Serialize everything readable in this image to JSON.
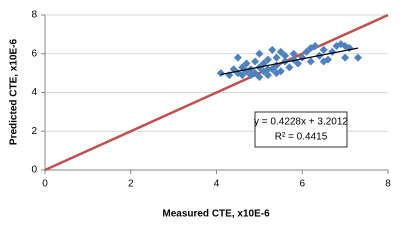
{
  "chart_data": {
    "type": "scatter",
    "xlabel": "Measured CTE, x10E-6",
    "ylabel": "Predicted CTE, x10E-6",
    "xlim": [
      0,
      8
    ],
    "ylim": [
      0,
      8
    ],
    "xticks": [
      0,
      2,
      4,
      6,
      8
    ],
    "yticks": [
      0,
      2,
      4,
      6,
      8
    ],
    "grid": true,
    "points": {
      "color": "#4f81bd",
      "x": [
        4.1,
        4.3,
        4.4,
        4.5,
        4.5,
        4.6,
        4.6,
        4.7,
        4.7,
        4.8,
        4.8,
        4.9,
        4.9,
        5.0,
        5.0,
        5.0,
        5.1,
        5.1,
        5.2,
        5.2,
        5.3,
        5.3,
        5.4,
        5.4,
        5.4,
        5.5,
        5.5,
        5.6,
        5.6,
        5.7,
        5.8,
        5.8,
        5.9,
        6.0,
        6.1,
        6.2,
        6.2,
        6.3,
        6.4,
        6.5,
        6.6,
        6.7,
        6.8,
        6.9,
        7.0,
        7.0,
        7.1,
        7.3,
        6.5,
        5.2
      ],
      "y": [
        5.0,
        4.9,
        5.2,
        5.0,
        5.8,
        5.3,
        4.9,
        5.1,
        5.5,
        5.2,
        4.9,
        5.6,
        5.0,
        5.3,
        4.8,
        6.0,
        5.1,
        5.5,
        4.9,
        5.7,
        5.2,
        6.2,
        5.0,
        5.8,
        5.4,
        6.1,
        5.1,
        5.6,
        5.9,
        5.3,
        5.7,
        6.0,
        5.5,
        5.8,
        6.1,
        5.6,
        6.3,
        6.4,
        5.9,
        6.2,
        5.7,
        6.1,
        6.4,
        6.5,
        6.4,
        5.8,
        6.3,
        5.8,
        5.6,
        5.2
      ]
    },
    "lines": [
      {
        "color": "#c0504d",
        "x": [
          0,
          8
        ],
        "y": [
          0,
          8
        ]
      },
      {
        "color": "#000000",
        "x": [
          4.1,
          7.3
        ],
        "y": [
          4.93,
          6.29
        ]
      }
    ],
    "annotation": [
      "y = 0.4228x + 3.2012",
      "R² = 0.4415"
    ]
  }
}
